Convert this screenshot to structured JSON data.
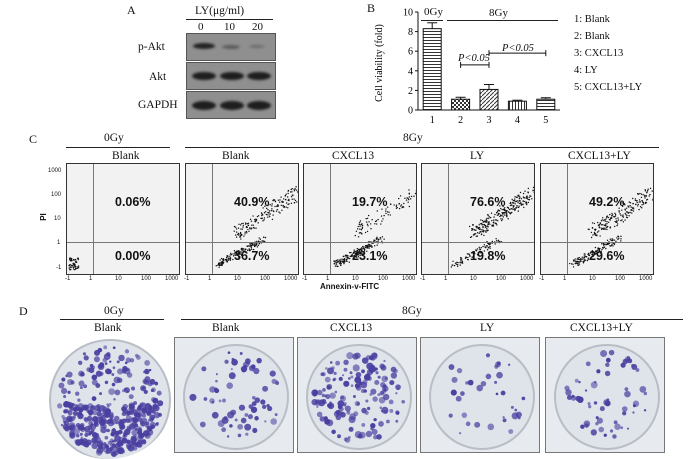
{
  "panel_a": {
    "letter": "A",
    "header": "LY(μg/ml)",
    "doses": [
      "0",
      "10",
      "20"
    ],
    "rows": [
      "p-Akt",
      "Akt",
      "GAPDH"
    ]
  },
  "panel_b": {
    "letter": "B",
    "group_0gy": "0Gy",
    "group_8gy": "8Gy",
    "p1": "P<0.05",
    "p2": "P<0.05",
    "legend": [
      "1: Blank",
      "2: Blank",
      "3: CXCL13",
      "4: LY",
      "5: CXCL13+LY"
    ]
  },
  "chart_data": {
    "type": "bar",
    "categories": [
      "1",
      "2",
      "3",
      "4",
      "5"
    ],
    "values": [
      8.3,
      1.1,
      2.1,
      0.9,
      1.1
    ],
    "errors": [
      0.6,
      0.2,
      0.5,
      0.1,
      0.15
    ],
    "ylabel": "Cell viability (fold)",
    "ylim": [
      0,
      10
    ],
    "yticks": [
      "0",
      "2",
      "4",
      "6",
      "8",
      "10"
    ],
    "patterns": [
      "horizontal-lines",
      "checker",
      "diagonal",
      "vertical-lines",
      "horizontal-lines"
    ]
  },
  "panel_c": {
    "letter": "C",
    "group_0gy": "0Gy",
    "group_8gy": "8Gy",
    "ylabel": "PI",
    "xlabel": "Annexin-v-FITC",
    "yticks": [
      "1000",
      "100",
      "10",
      "1",
      "-1"
    ],
    "xticks": [
      "-1",
      "1",
      "10",
      "100",
      "1000"
    ],
    "plots": [
      {
        "title": "Blank",
        "upper": "0.06%",
        "lower": "0.00%"
      },
      {
        "title": "Blank",
        "upper": "40.9%",
        "lower": "36.7%"
      },
      {
        "title": "CXCL13",
        "upper": "19.7%",
        "lower": "23.1%"
      },
      {
        "title": "LY",
        "upper": "76.6%",
        "lower": "19.8%"
      },
      {
        "title": "CXCL13+LY",
        "upper": "49.2%",
        "lower": "29.6%"
      }
    ]
  },
  "panel_d": {
    "letter": "D",
    "group_0gy": "0Gy",
    "group_8gy": "8Gy",
    "labels": [
      "Blank",
      "Blank",
      "CXCL13",
      "LY",
      "CXCL13+LY"
    ],
    "colony_color": "#4a3fa0"
  }
}
